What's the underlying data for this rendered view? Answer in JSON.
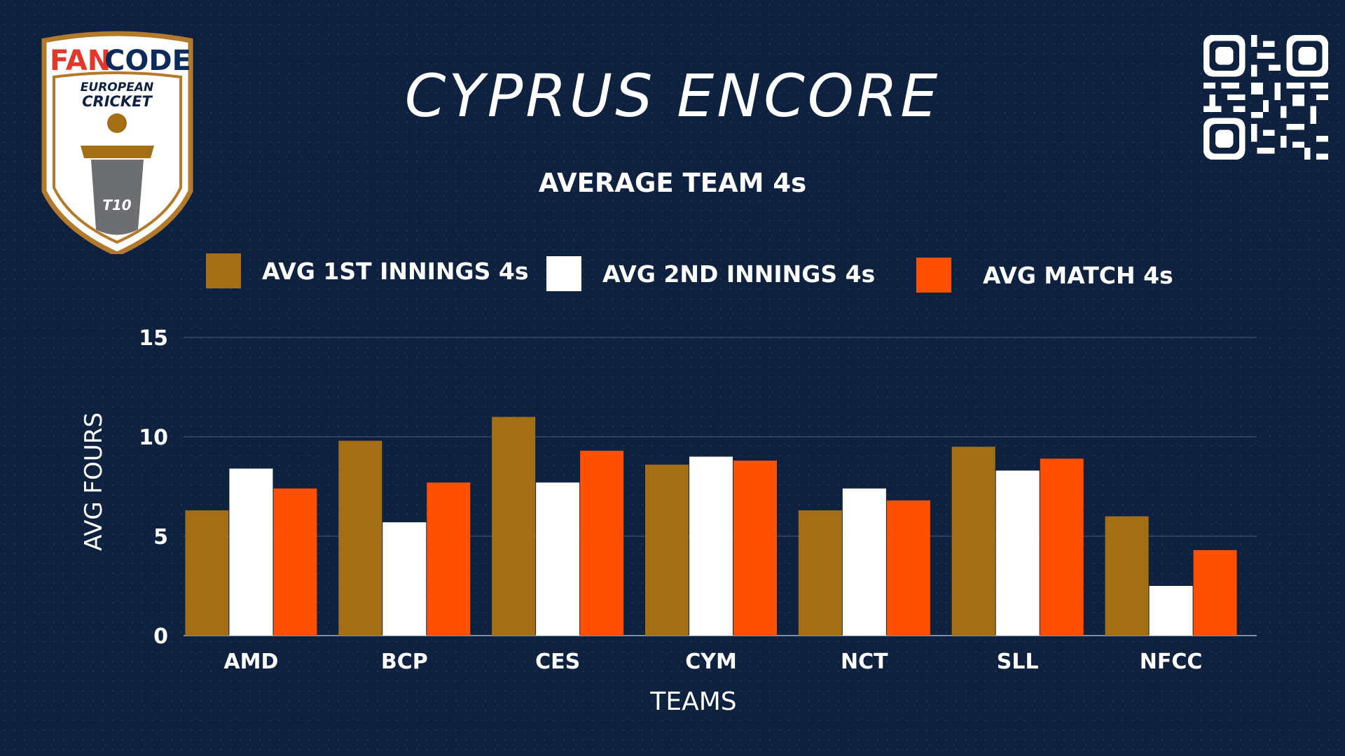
{
  "logo": {
    "brand_part1": "FAN",
    "brand_part2": "CODE",
    "line1": "EUROPEAN",
    "line2": "CRICKET",
    "badge": "T10"
  },
  "title": "CYPRUS ENCORE",
  "colors": {
    "background": "#0e2240",
    "first_innings": "#a36f16",
    "second_innings": "#ffffff",
    "match": "#ff5000"
  },
  "chart_data": {
    "type": "bar",
    "title": "AVERAGE TEAM 4s",
    "xlabel": "TEAMS",
    "ylabel": "AVG FOURS",
    "ylim": [
      0,
      15
    ],
    "yticks": [
      0,
      5,
      10,
      15
    ],
    "grid": true,
    "legend_position": "top",
    "categories": [
      "AMD",
      "BCP",
      "CES",
      "CYM",
      "NCT",
      "SLL",
      "NFCC"
    ],
    "series": [
      {
        "name": "AVG 1ST INNINGS 4s",
        "color": "#a36f16",
        "values": [
          6.3,
          9.8,
          11.0,
          8.6,
          6.3,
          9.5,
          6.0
        ]
      },
      {
        "name": "AVG 2ND INNINGS 4s",
        "color": "#ffffff",
        "values": [
          8.4,
          5.7,
          7.7,
          9.0,
          7.4,
          8.3,
          2.5
        ]
      },
      {
        "name": "AVG MATCH 4s",
        "color": "#ff5000",
        "values": [
          7.4,
          7.7,
          9.3,
          8.8,
          6.8,
          8.9,
          4.3
        ]
      }
    ]
  }
}
